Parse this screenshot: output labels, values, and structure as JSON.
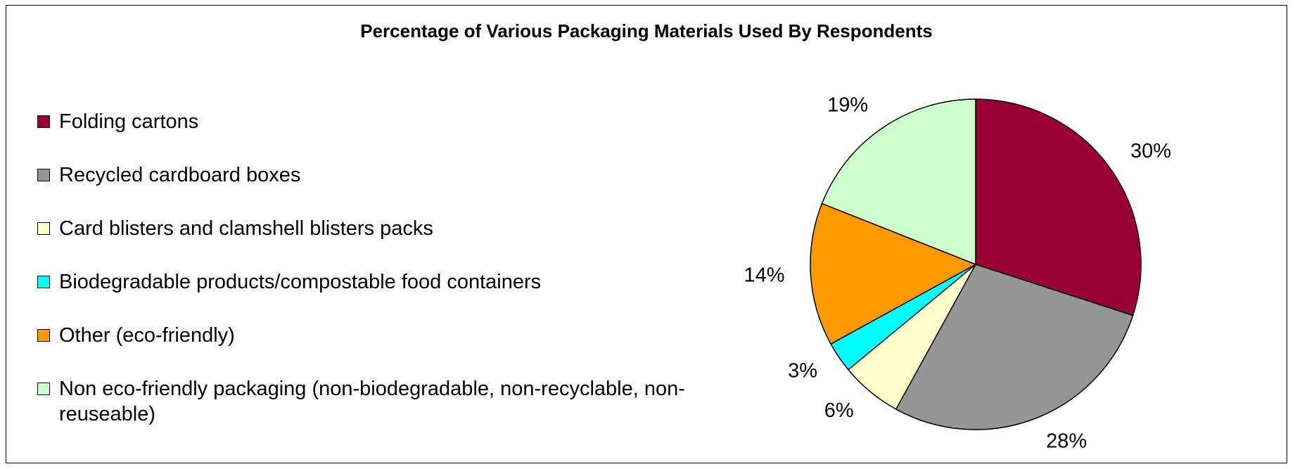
{
  "chart_data": {
    "type": "pie",
    "title": "Percentage of Various Packaging Materials Used By Respondents",
    "legend_position": "left",
    "slices": [
      {
        "name": "Folding cartons",
        "value": 30,
        "label": "30%",
        "color": "#990033"
      },
      {
        "name": "Recycled cardboard boxes",
        "value": 28,
        "label": "28%",
        "color": "#969696"
      },
      {
        "name": "Card blisters and clamshell blisters packs",
        "value": 6,
        "label": "6%",
        "color": "#FFFFCC"
      },
      {
        "name": "Biodegradable products/compostable food containers",
        "value": 3,
        "label": "3%",
        "color": "#00FFFF"
      },
      {
        "name": "Other (eco-friendly)",
        "value": 14,
        "label": "14%",
        "color": "#FF9900"
      },
      {
        "name": "Non eco-friendly packaging (non-biodegradable, non-recyclable, non-reuseable)",
        "value": 19,
        "label": "19%",
        "color": "#CCFFCC"
      }
    ]
  }
}
